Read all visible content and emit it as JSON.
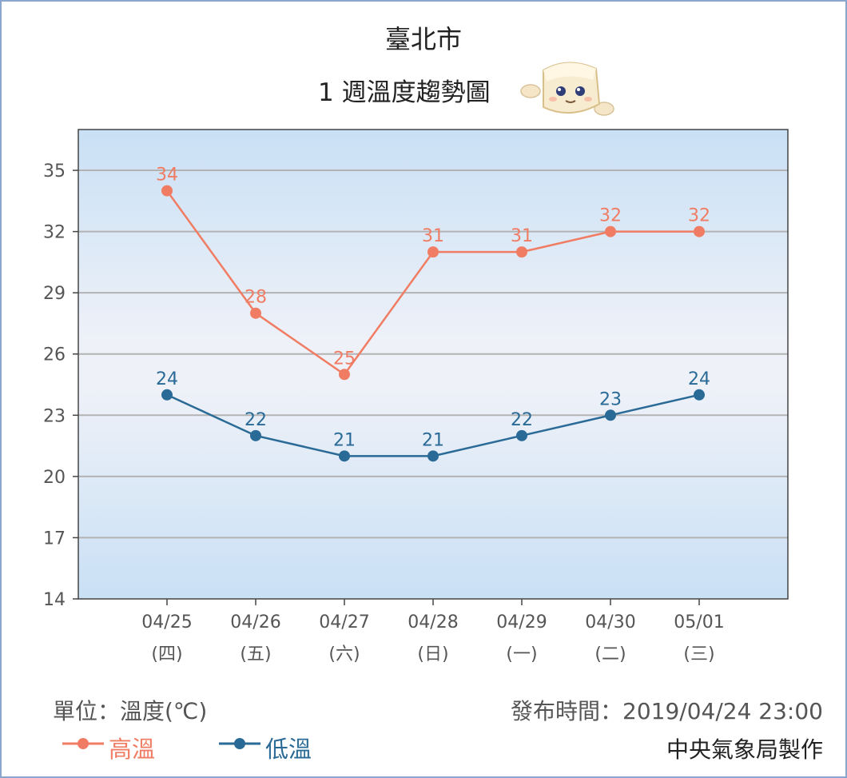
{
  "header": {
    "city": "臺北市",
    "subtitle": "1 週溫度趨勢圖"
  },
  "footer": {
    "unit": "單位：溫度(℃)",
    "published": "發布時間：2019/04/24 23:00",
    "maker": "中央氣象局製作"
  },
  "colors": {
    "high": "#f07d63",
    "low": "#2a6a96",
    "grid": "#b3b3b3",
    "plot_bg_edge": "#c9e0f5",
    "plot_bg_center": "#eef1f8"
  },
  "chart_data": {
    "type": "line",
    "categories": [
      "04/25",
      "04/26",
      "04/27",
      "04/28",
      "04/29",
      "04/30",
      "05/01"
    ],
    "weekday_labels": [
      "(四)",
      "(五)",
      "(六)",
      "(日)",
      "(一)",
      "(二)",
      "(三)"
    ],
    "series": [
      {
        "name": "高溫",
        "values": [
          34,
          28,
          25,
          31,
          31,
          32,
          32
        ]
      },
      {
        "name": "低溫",
        "values": [
          24,
          22,
          21,
          21,
          22,
          23,
          24
        ]
      }
    ],
    "yticks": [
      14,
      17,
      20,
      23,
      26,
      29,
      32,
      35
    ],
    "ylim": [
      14,
      37
    ],
    "grid": true,
    "legend": "bottom-left"
  }
}
